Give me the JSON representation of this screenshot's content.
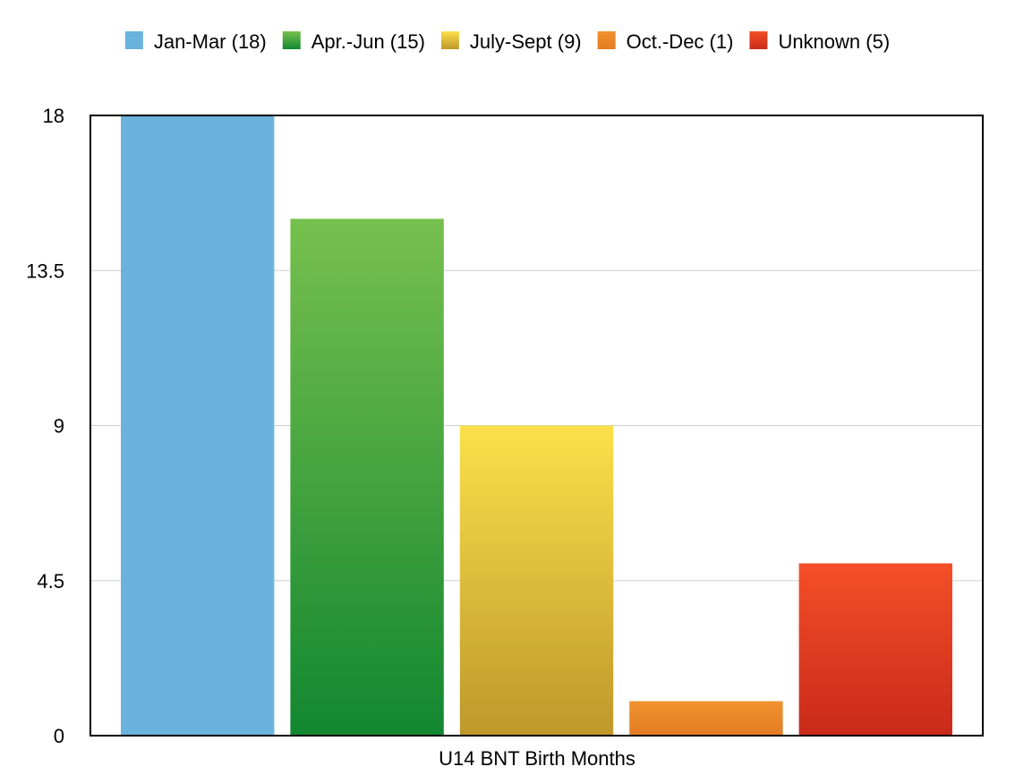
{
  "chart_data": {
    "type": "bar",
    "xlabel": "U14 BNT Birth Months",
    "ylabel": "",
    "ylim": [
      0,
      18
    ],
    "yticks": [
      "0",
      "4.5",
      "9",
      "13.5",
      "18"
    ],
    "grid": true,
    "legend_position": "top",
    "series": [
      {
        "name": "Jan-Mar (18)",
        "value": 18,
        "color_top": "#6ab3dd",
        "color_bottom": "#6ab3dd"
      },
      {
        "name": "Apr.-Jun (15)",
        "value": 15,
        "color_top": "#77c04e",
        "color_bottom": "#128730"
      },
      {
        "name": "July-Sept (9)",
        "value": 9,
        "color_top": "#fbe04a",
        "color_bottom": "#bf982b"
      },
      {
        "name": "Oct.-Dec (1)",
        "value": 1,
        "color_top": "#f0932f",
        "color_bottom": "#e47b22"
      },
      {
        "name": "Unknown (5)",
        "value": 5,
        "color_top": "#f44f28",
        "color_bottom": "#c92a1a"
      }
    ]
  }
}
